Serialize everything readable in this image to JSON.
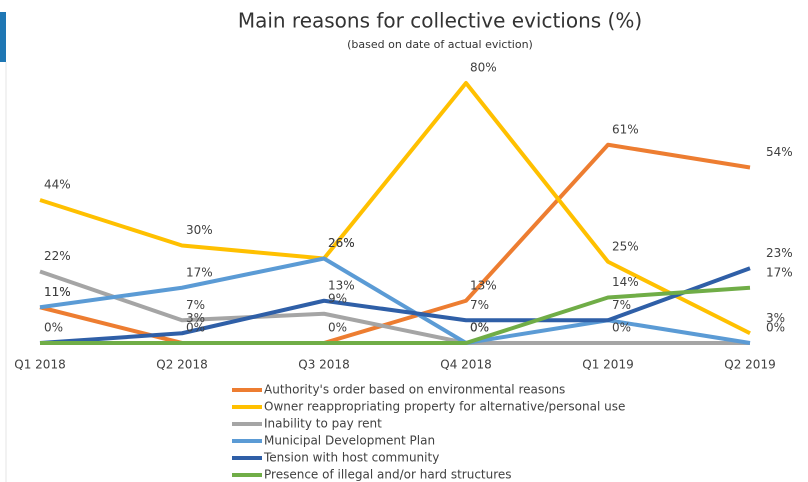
{
  "chart_data": {
    "type": "line",
    "title": "Main reasons for collective evictions (%)",
    "subtitle": "(based on date of actual eviction)",
    "categories": [
      "Q1 2018",
      "Q2 2018",
      "Q3 2018",
      "Q4 2018",
      "Q1 2019",
      "Q2 2019"
    ],
    "ylim": [
      0,
      80
    ],
    "series": [
      {
        "name": "Authority's order based on environmental reasons",
        "color": "#ed7d31",
        "values": [
          11,
          0,
          0,
          13,
          61,
          54
        ],
        "value_labels": [
          "11%",
          null,
          "0%",
          "13%",
          "61%",
          "54%"
        ]
      },
      {
        "name": "Owner reappropriating property for alternative/personal use",
        "color": "#ffc000",
        "values": [
          44,
          30,
          26,
          80,
          25,
          3
        ],
        "value_labels": [
          "44%",
          "30%",
          "26%",
          "80%",
          "25%",
          "3%"
        ]
      },
      {
        "name": "Inability to pay rent",
        "color": "#a5a5a5",
        "values": [
          22,
          7,
          9,
          0,
          0,
          0
        ],
        "value_labels": [
          "22%",
          "7%",
          "9%",
          null,
          "0%",
          null
        ]
      },
      {
        "name": "Municipal Development Plan",
        "color": "#5b9bd5",
        "values": [
          11,
          17,
          26,
          0,
          7,
          0
        ],
        "value_labels": [
          "11%",
          "17%",
          "26%",
          "0%",
          "7%",
          "0%"
        ]
      },
      {
        "name": "Tension with host community",
        "color": "#2f5fa7",
        "values": [
          0,
          3,
          13,
          7,
          7,
          23
        ],
        "value_labels": [
          "0%",
          "3%",
          "13%",
          "7%",
          null,
          "23%"
        ]
      },
      {
        "name": "Presence of illegal and/or hard structures",
        "color": "#70ad47",
        "values": [
          0,
          0,
          0,
          0,
          14,
          17
        ],
        "value_labels": [
          null,
          "0%",
          null,
          "0%",
          "14%",
          "17%"
        ]
      }
    ]
  }
}
